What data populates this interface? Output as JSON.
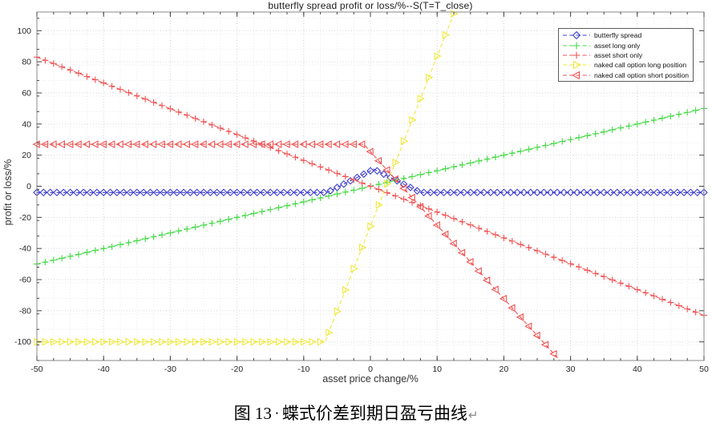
{
  "chart_data": {
    "type": "line",
    "title": "butterfly spread profit or loss/%--S(T=T_close)",
    "xlabel": "asset price change/%",
    "ylabel": "profit or loss/%",
    "xlim": [
      -50,
      50
    ],
    "ylim": [
      -112,
      112
    ],
    "xticks": [
      -50,
      -40,
      -30,
      -20,
      -10,
      0,
      10,
      20,
      30,
      40,
      50
    ],
    "yticks": [
      -100,
      -80,
      -60,
      -40,
      -20,
      0,
      20,
      40,
      60,
      80,
      100
    ],
    "x_minor_step": 2.5,
    "y_minor_step": 10,
    "grid": true,
    "line_style": "dashed",
    "legend_position": "top-right",
    "series": [
      {
        "name": "butterfly spread",
        "color": "#3c3ccf",
        "marker": "diamond",
        "marker_step": 1,
        "points": [
          [
            -50,
            -4
          ],
          [
            -6.5,
            -4
          ],
          [
            0.5,
            11
          ],
          [
            7.5,
            -4
          ],
          [
            50,
            -4
          ]
        ]
      },
      {
        "name": "asset long only",
        "color": "#44d944",
        "marker": "plus",
        "marker_step": 1.25,
        "points": [
          [
            -50,
            -50
          ],
          [
            50,
            50
          ]
        ]
      },
      {
        "name": "asset short only",
        "color": "#f15252",
        "marker": "plus",
        "marker_step": 1.25,
        "points": [
          [
            -50,
            83
          ],
          [
            50,
            -83
          ]
        ]
      },
      {
        "name": "naked call option long position",
        "color": "#efe83c",
        "marker": "triangle-right",
        "marker_step": 1.25,
        "points": [
          [
            -50,
            -100
          ],
          [
            -6.8,
            -100
          ],
          [
            12.6,
            112
          ]
        ]
      },
      {
        "name": "naked call option short position",
        "color": "#f15252",
        "marker": "triangle-left",
        "marker_step": 1.25,
        "points": [
          [
            -50,
            27
          ],
          [
            -1,
            27
          ],
          [
            28.4,
            -112
          ]
        ]
      }
    ]
  },
  "caption": {
    "label": "图 13",
    "separator": "·",
    "text": "蝶式价差到期日盈亏曲线",
    "return_mark": "↵"
  }
}
